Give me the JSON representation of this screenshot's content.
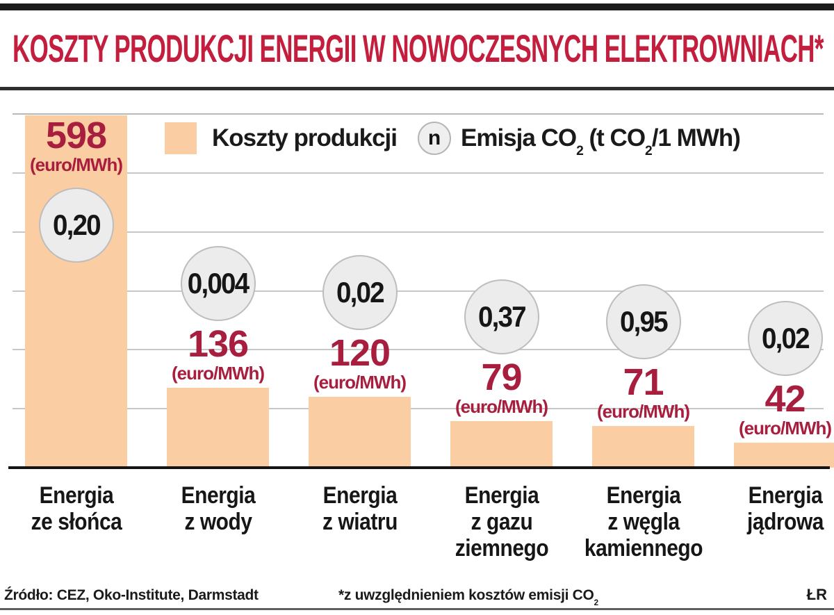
{
  "header": {
    "title": "KOSZTY PRODUKCJI ENERGII W NOWOCZESNYCH ELEKTROWNIACH*"
  },
  "legend": {
    "costs_label": "Koszty produkcji",
    "emission_marker": "n",
    "emission_label_parts": [
      "Emisja CO",
      "2",
      " (t CO",
      "2",
      "/1 MWh)"
    ]
  },
  "chart_data": {
    "type": "bar",
    "title": "KOSZTY PRODUKCJI ENERGII W NOWOCZESNYCH ELEKTROWNIACH*",
    "unit_label": "(euro/MWh)",
    "ylim": [
      0,
      600
    ],
    "grid": true,
    "legend_position": "top",
    "categories": [
      "Energia ze słońca",
      "Energia z wody",
      "Energia z wiatru",
      "Energia z gazu ziemnego",
      "Energia z węgla kamiennego",
      "Energia jądrowa"
    ],
    "series": [
      {
        "name": "Koszty produkcji",
        "unit": "euro/MWh",
        "values": [
          598,
          136,
          120,
          79,
          71,
          42
        ]
      },
      {
        "name": "Emisja CO2",
        "unit": "t CO2/1 MWh",
        "values": [
          0.2,
          0.004,
          0.02,
          0.37,
          0.95,
          0.02
        ]
      }
    ],
    "columns": [
      {
        "category_lines": [
          "Energia",
          "ze słońca"
        ],
        "cost": 598,
        "cost_display": "598",
        "co2": 0.2,
        "co2_display": "0,20"
      },
      {
        "category_lines": [
          "Energia",
          "z wody"
        ],
        "cost": 136,
        "cost_display": "136",
        "co2": 0.004,
        "co2_display": "0,004"
      },
      {
        "category_lines": [
          "Energia",
          "z wiatru"
        ],
        "cost": 120,
        "cost_display": "120",
        "co2": 0.02,
        "co2_display": "0,02"
      },
      {
        "category_lines": [
          "Energia",
          "z gazu",
          "ziemnego"
        ],
        "cost": 79,
        "cost_display": "79",
        "co2": 0.37,
        "co2_display": "0,37"
      },
      {
        "category_lines": [
          "Energia",
          "z węgla",
          "kamiennego"
        ],
        "cost": 71,
        "cost_display": "71",
        "co2": 0.95,
        "co2_display": "0,95"
      },
      {
        "category_lines": [
          "Energia",
          "jądrowa"
        ],
        "cost": 42,
        "cost_display": "42",
        "co2": 0.02,
        "co2_display": "0,02"
      }
    ]
  },
  "footer": {
    "source": "Źródło: CEZ, Oko-Institute, Darmstadt",
    "footnote_parts": [
      "*z uwzględnieniem kosztów emisji CO",
      "2"
    ],
    "credit": "ŁR"
  },
  "colors": {
    "bar": "#fbcda2",
    "title": "#c41e3e",
    "value_text": "#a81e3e",
    "circle_fill": "#ececec",
    "circle_border": "#bdbdbd",
    "gridline": "#c7c7c7",
    "baseline": "#141414"
  }
}
